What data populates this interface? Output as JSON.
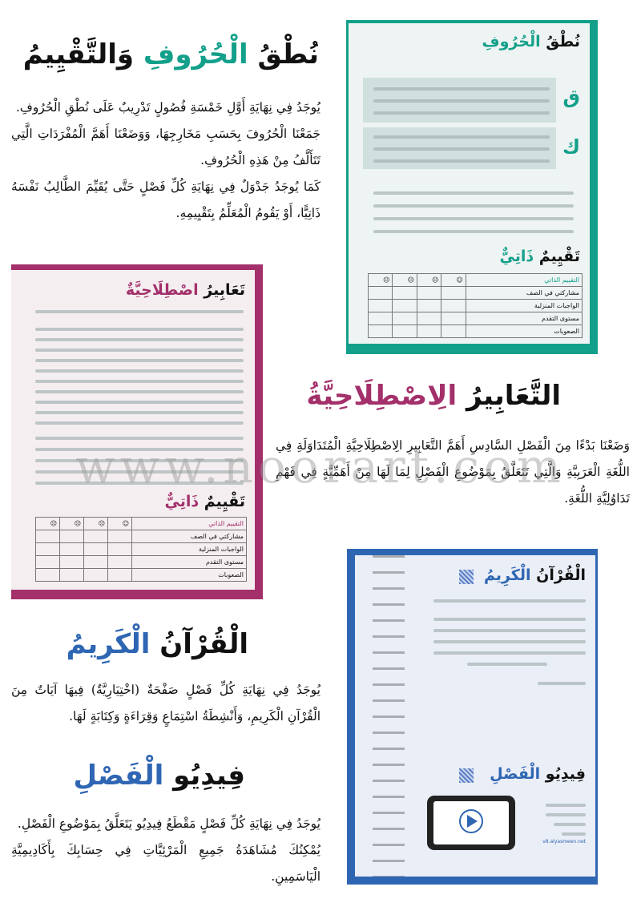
{
  "colors": {
    "teal": "#13a08a",
    "magenta": "#a3306a",
    "blue": "#2f66b3",
    "black": "#111111"
  },
  "sections": [
    {
      "title_black": "نُطْقُ",
      "title_accent": "الْحُرُوفِ",
      "title_black2": "وَالتَّقْيِيمُ",
      "lines": [
        "يُوجَدُ فِي نِهَايَةِ أَوَّلِ خَمْسَةِ فُصُولٍ تَدْرِيبٌ عَلَى نُطْقِ الْحُرُوفِ.",
        "جَمَعْنَا الْحُرُوفَ بِحَسَبِ مَخَارِجِهَا، وَوَضَعْنَا أَهَمَّ الْمُفْرَدَاتِ الَّتِي تَتَأَلَّفُ مِنْ هَذِهِ الْحُرُوفِ.",
        "كَمَا يُوجَدُ جَدْوَلٌ فِي نِهَايَةِ كُلِّ فَصْلٍ حَتَّى يُقَيِّمَ الطَّالِبُ نَفْسَهُ ذَاتِيًّا، أَوْ يَقُومُ الْمُعَلِّمُ بِتَقْيِيمِهِ."
      ]
    },
    {
      "title_black": "التَّعَابِيرُ",
      "title_accent": "الِاصْطِلَاحِيَّةُ",
      "lines": [
        "وَضَعْنَا بَدْءًا مِنَ الْفَصْلِ السَّادِسِ أَهَمَّ التَّعَابِيرِ الِاصْطِلَاحِيَّةِ الْمُتَدَاوَلَةِ فِي اللُّغَةِ الْعَرَبِيَّةِ وَالَّتِي تَتَعَلَّقُ بِمَوْضُوعِ الْفَصْلِ لِمَا لَهَا مِنْ أَهَمِّيَّةٍ فِي فَهْمِ تَدَاوُلِيَّةِ اللُّغَةِ."
      ]
    },
    {
      "title_black": "الْقُرْآنُ",
      "title_accent": "الْكَرِيمُ",
      "lines": [
        "يُوجَدُ فِي نِهَايَةِ كُلِّ فَصْلٍ صَفْحَةٌ (اخْتِيَارِيَّةٌ) فِيهَا آيَاتٌ مِنَ الْقُرْآنِ الْكَرِيمِ، وَأَنْشِطَةُ اسْتِمَاعٍ وَقِرَاءَةٍ وَكِتَابَةٍ لَهَا."
      ]
    },
    {
      "title_black": "فِيدِيُو",
      "title_accent": "الْفَصْلِ",
      "lines": [
        "يُوجَدُ فِي نِهَايَةِ كُلِّ فَصْلٍ مَقْطَعُ فِيدِيُو يَتَعَلَّقُ بِمَوْضُوعِ الْفَصْلِ.",
        "يُمْكِنُكَ مُشَاهَدَةُ جَمِيعِ الْمَرْئِيَّاتِ فِي حِسَابِكَ بِأَكَادِيمِيَّةِ الْيَاسَمِينِ."
      ]
    }
  ],
  "thumbnails": {
    "pronunciation": {
      "title_black": "نُطْقُ",
      "title_accent": "الْحُرُوفِ",
      "letters": [
        "ق",
        "ك"
      ],
      "eval_black": "تَقْيِيمٌ",
      "eval_accent": "ذَاتِيٌّ"
    },
    "idioms": {
      "title_black": "تَعَابِيرُ",
      "title_accent": "اصْطِلَاحِيَّةٌ",
      "eval_black": "تَقْيِيمٌ",
      "eval_accent": "ذَاتِيٌّ"
    },
    "quran": {
      "title_black": "الْقُرْآنُ",
      "title_accent": "الْكَرِيمُ",
      "video_black": "فِيدِيُو",
      "video_accent": "الْفَصْلِ",
      "url": "v8.alyasmeen.net"
    },
    "table_rows": [
      "التقييم الذاتي",
      "مشاركتي في الصف",
      "الواجبات المنزلية",
      "مستوى التقدم",
      "الصعوبات"
    ],
    "table_icons": [
      "smile-face-icon",
      "neutral-face-icon",
      "sad-face-icon",
      "angry-face-icon"
    ]
  },
  "watermark": "www.noorart.com"
}
